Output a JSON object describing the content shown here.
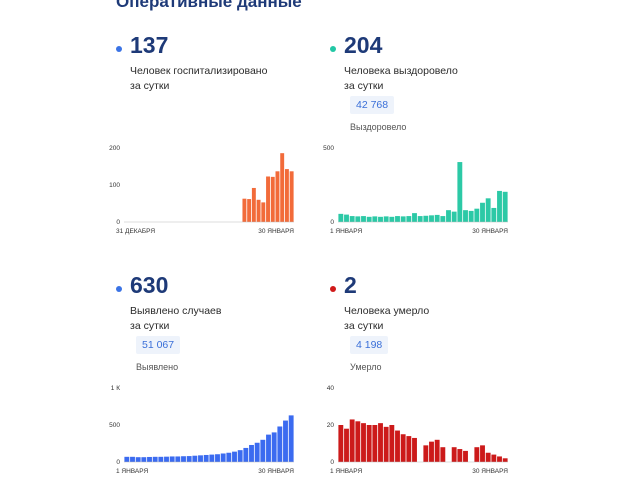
{
  "header": {
    "title": "Оперативные данные"
  },
  "cards": [
    {
      "key": "hosp",
      "value": "137",
      "description": [
        "Человек госпитализировано",
        "за сутки"
      ],
      "total": "",
      "total_label": "",
      "dot_color": "#3b73e5",
      "bar_color": "#f26b3a",
      "chart_data": {
        "type": "bar",
        "ylim": [
          0,
          200
        ],
        "yticks": [
          0,
          100,
          200
        ],
        "ytick_labels": [
          "0",
          "100",
          "200"
        ],
        "x_start_label": "31 ДЕКАБРЯ",
        "x_end_label": "30 ЯНВАРЯ",
        "values": [
          0,
          0,
          0,
          0,
          0,
          0,
          0,
          0,
          0,
          0,
          0,
          0,
          0,
          0,
          0,
          0,
          0,
          0,
          0,
          0,
          0,
          0,
          0,
          0,
          0,
          63,
          62,
          92,
          60,
          53,
          123,
          122,
          137,
          186,
          143,
          137
        ]
      }
    },
    {
      "key": "recovered",
      "value": "204",
      "description": [
        "Человека выздоровело",
        "за сутки"
      ],
      "total": "42 768",
      "total_label": "Выздоровело",
      "dot_color": "#22c7a5",
      "bar_color": "#2cc9a6",
      "chart_data": {
        "type": "bar",
        "ylim": [
          0,
          500
        ],
        "yticks": [
          0,
          500
        ],
        "ytick_labels": [
          "0",
          "500"
        ],
        "x_start_label": "1 ЯНВАРЯ",
        "x_end_label": "30 ЯНВАРЯ",
        "values": [
          55,
          50,
          40,
          38,
          40,
          35,
          38,
          35,
          38,
          35,
          40,
          38,
          40,
          60,
          40,
          42,
          45,
          48,
          40,
          80,
          70,
          405,
          80,
          75,
          90,
          130,
          160,
          95,
          210,
          204
        ]
      }
    },
    {
      "key": "cases",
      "value": "630",
      "description": [
        "Выявлено случаев",
        "за сутки"
      ],
      "total": "51 067",
      "total_label": "Выявлено",
      "dot_color": "#3b73e5",
      "bar_color": "#3b6bf0",
      "chart_data": {
        "type": "bar",
        "ylim": [
          0,
          1000
        ],
        "yticks": [
          0,
          500,
          1000
        ],
        "ytick_labels": [
          "0",
          "500",
          "1 К"
        ],
        "x_start_label": "1 ЯНВАРЯ",
        "x_end_label": "30 ЯНВАРЯ",
        "values": [
          70,
          70,
          65,
          65,
          68,
          70,
          70,
          72,
          75,
          75,
          78,
          80,
          85,
          90,
          95,
          100,
          105,
          115,
          125,
          140,
          160,
          190,
          230,
          260,
          300,
          370,
          400,
          480,
          560,
          630
        ]
      }
    },
    {
      "key": "deaths",
      "value": "2",
      "description": [
        "Человека умерло",
        "за сутки"
      ],
      "total": "4 198",
      "total_label": "Умерло",
      "dot_color": "#d01a1a",
      "bar_color": "#cc1a1a",
      "chart_data": {
        "type": "bar",
        "ylim": [
          0,
          40
        ],
        "yticks": [
          0,
          20,
          40
        ],
        "ytick_labels": [
          "0",
          "20",
          "40"
        ],
        "x_start_label": "1 ЯНВАРЯ",
        "x_end_label": "30 ЯНВАРЯ",
        "values": [
          20,
          18,
          23,
          22,
          21,
          20,
          20,
          21,
          19,
          20,
          17,
          15,
          14,
          13,
          0,
          9,
          11,
          12,
          8,
          0,
          8,
          7,
          6,
          0,
          8,
          9,
          5,
          4,
          3,
          2
        ]
      }
    }
  ]
}
